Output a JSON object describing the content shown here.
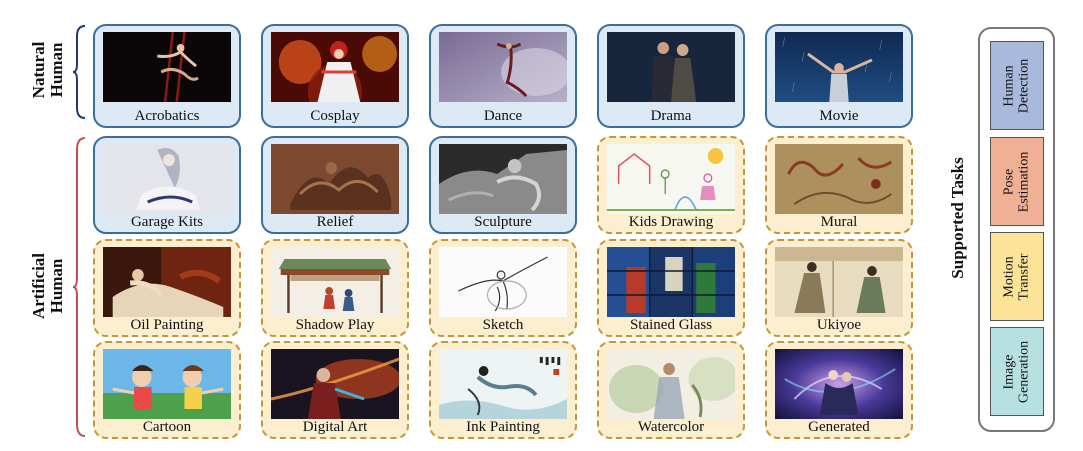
{
  "groups": {
    "natural": {
      "line1": "Natural",
      "line2": "Human"
    },
    "artificial": {
      "line1": "Artificial",
      "line2": "Human"
    }
  },
  "categories": [
    {
      "label": "Acrobatics"
    },
    {
      "label": "Cosplay"
    },
    {
      "label": "Dance"
    },
    {
      "label": "Drama"
    },
    {
      "label": "Movie"
    },
    {
      "label": "Garage Kits"
    },
    {
      "label": "Relief"
    },
    {
      "label": "Sculpture"
    },
    {
      "label": "Kids Drawing"
    },
    {
      "label": "Mural"
    },
    {
      "label": "Oil Painting"
    },
    {
      "label": "Shadow Play"
    },
    {
      "label": "Sketch"
    },
    {
      "label": "Stained Glass"
    },
    {
      "label": "Ukiyoe"
    },
    {
      "label": "Cartoon"
    },
    {
      "label": "Digital Art"
    },
    {
      "label": "Ink Painting"
    },
    {
      "label": "Watercolor"
    },
    {
      "label": "Generated"
    }
  ],
  "supported_tasks": {
    "title": "Supported Tasks",
    "items": [
      {
        "line1": "Human",
        "line2": "Detection",
        "color": "#a9b9dc"
      },
      {
        "line1": "Pose",
        "line2": "Estimation",
        "color": "#efb095"
      },
      {
        "line1": "Motion",
        "line2": "Transfer",
        "color": "#fbe49a"
      },
      {
        "line1": "Image",
        "line2": "Generation",
        "color": "#b7e0e0"
      }
    ]
  },
  "colors": {
    "natural_border": "#3b6e98",
    "natural_fill": "#dde9f5",
    "artificial_border": "#c4953a",
    "artificial_fill": "#fcefcf",
    "natural_brace": "#1f3b73",
    "artificial_brace": "#c0504d"
  }
}
